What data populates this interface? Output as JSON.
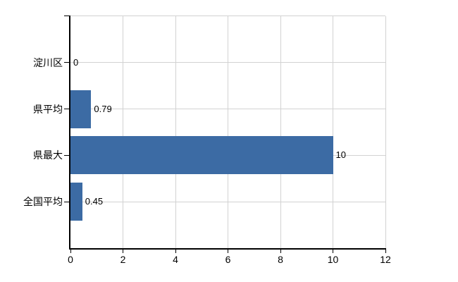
{
  "chart": {
    "title": "",
    "colors": {
      "bar": "#3c6ba4",
      "grid": "#d2d2d2",
      "axis": "#000000",
      "text": "#000000",
      "background": "#ffffff"
    }
  },
  "chart_data": {
    "type": "bar",
    "orientation": "horizontal",
    "categories": [
      "淀川区",
      "県平均",
      "県最大",
      "全国平均"
    ],
    "values": [
      0,
      0.79,
      10,
      0.45
    ],
    "value_labels": [
      "0",
      "0.79",
      "10",
      "0.45"
    ],
    "x_ticks": [
      0,
      2,
      4,
      6,
      8,
      10,
      12
    ],
    "x_tick_labels": [
      "0",
      "2",
      "4",
      "6",
      "8",
      "10",
      "12"
    ],
    "xlim": [
      0,
      12
    ],
    "title": "",
    "xlabel": "",
    "ylabel": "",
    "grid": true,
    "legend": false
  }
}
